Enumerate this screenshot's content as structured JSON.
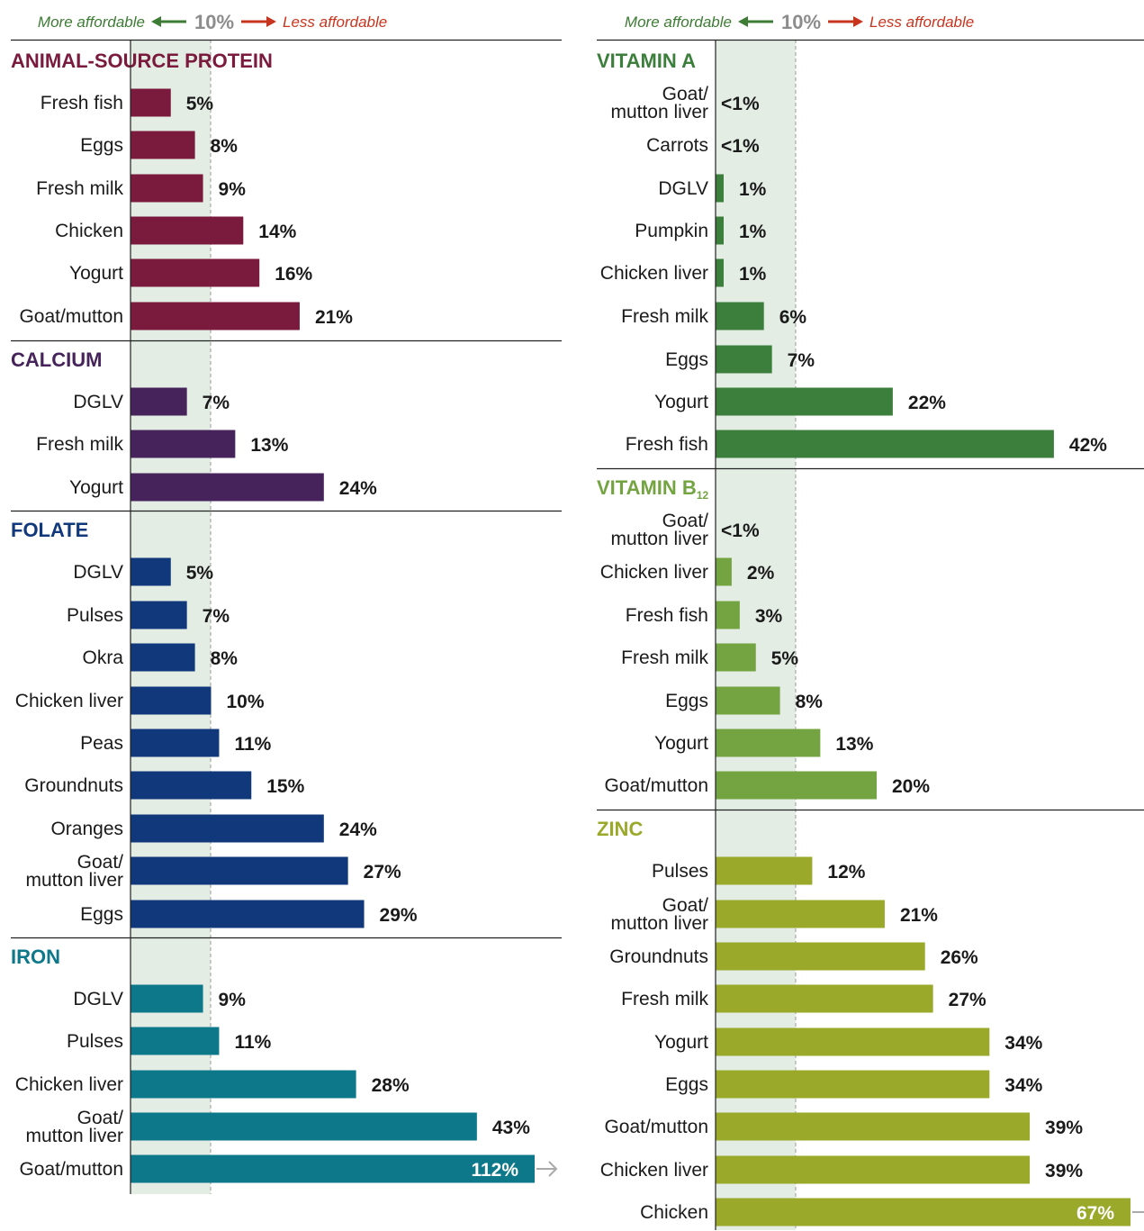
{
  "legend": {
    "left_label": "More affordable",
    "threshold_label": "10%",
    "right_label": "Less affordable",
    "left_color": "#3d7c34",
    "right_color": "#c8351f"
  },
  "chart_data": [
    {
      "type": "bar",
      "orientation": "horizontal",
      "title": "ANIMAL-SOURCE PROTEIN",
      "color": "#7a1a3c",
      "categories": [
        "Fresh fish",
        "Eggs",
        "Fresh milk",
        "Chicken",
        "Yogurt",
        "Goat/mutton"
      ],
      "values": [
        5,
        8,
        9,
        14,
        16,
        21
      ],
      "value_labels": [
        "5%",
        "8%",
        "9%",
        "14%",
        "16%",
        "21%"
      ],
      "threshold": 10
    },
    {
      "type": "bar",
      "orientation": "horizontal",
      "title": "CALCIUM",
      "color": "#46235a",
      "categories": [
        "DGLV",
        "Fresh milk",
        "Yogurt"
      ],
      "values": [
        7,
        13,
        24
      ],
      "value_labels": [
        "7%",
        "13%",
        "24%"
      ],
      "threshold": 10
    },
    {
      "type": "bar",
      "orientation": "horizontal",
      "title": "FOLATE",
      "color": "#10387a",
      "categories": [
        "DGLV",
        "Pulses",
        "Okra",
        "Chicken liver",
        "Peas",
        "Groundnuts",
        "Oranges",
        "Goat/\nmutton liver",
        "Eggs"
      ],
      "values": [
        5,
        7,
        8,
        10,
        11,
        15,
        24,
        27,
        29
      ],
      "value_labels": [
        "5%",
        "7%",
        "8%",
        "10%",
        "11%",
        "15%",
        "24%",
        "27%",
        "29%"
      ],
      "threshold": 10
    },
    {
      "type": "bar",
      "orientation": "horizontal",
      "title": "IRON",
      "color": "#0d788a",
      "categories": [
        "DGLV",
        "Pulses",
        "Chicken liver",
        "Goat/\nmutton liver",
        "Goat/mutton"
      ],
      "values": [
        9,
        11,
        28,
        43,
        112
      ],
      "value_labels": [
        "9%",
        "11%",
        "28%",
        "43%",
        "112%"
      ],
      "threshold": 10,
      "truncated_last": true
    },
    {
      "type": "bar",
      "orientation": "horizontal",
      "title": "VITAMIN A",
      "color": "#3c7e3c",
      "categories": [
        "Goat/\nmutton liver",
        "Carrots",
        "DGLV",
        "Pumpkin",
        "Chicken liver",
        "Fresh milk",
        "Eggs",
        "Yogurt",
        "Fresh fish"
      ],
      "values": [
        0,
        0,
        1,
        1,
        1,
        6,
        7,
        22,
        42
      ],
      "value_labels": [
        "<1%",
        "<1%",
        "1%",
        "1%",
        "1%",
        "6%",
        "7%",
        "22%",
        "42%"
      ],
      "threshold": 10
    },
    {
      "type": "bar",
      "orientation": "horizontal",
      "title": "VITAMIN B",
      "title_subscript": "12",
      "color": "#74a442",
      "categories": [
        "Goat/\nmutton liver",
        "Chicken liver",
        "Fresh fish",
        "Fresh milk",
        "Eggs",
        "Yogurt",
        "Goat/mutton"
      ],
      "values": [
        0,
        2,
        3,
        5,
        8,
        13,
        20
      ],
      "value_labels": [
        "<1%",
        "2%",
        "3%",
        "5%",
        "8%",
        "13%",
        "20%"
      ],
      "threshold": 10
    },
    {
      "type": "bar",
      "orientation": "horizontal",
      "title": "ZINC",
      "color": "#9aa92a",
      "categories": [
        "Pulses",
        "Goat/\nmutton liver",
        "Groundnuts",
        "Fresh milk",
        "Yogurt",
        "Eggs",
        "Goat/mutton",
        "Chicken liver",
        "Chicken"
      ],
      "values": [
        12,
        21,
        26,
        27,
        34,
        34,
        39,
        39,
        67
      ],
      "value_labels": [
        "12%",
        "21%",
        "26%",
        "27%",
        "34%",
        "34%",
        "39%",
        "39%",
        "67%"
      ],
      "threshold": 10,
      "truncated_last": true
    }
  ]
}
